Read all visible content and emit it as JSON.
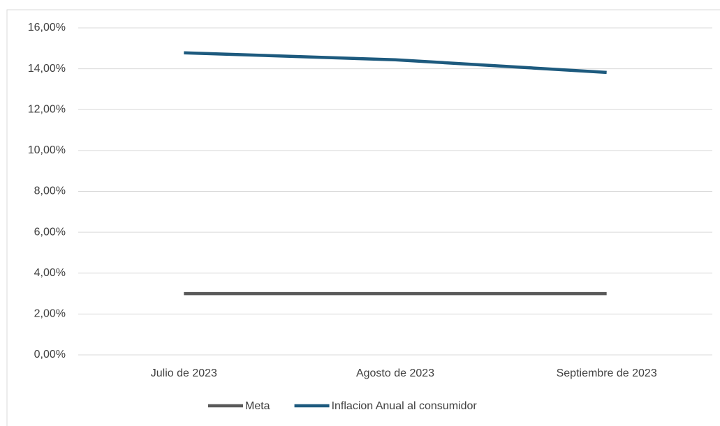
{
  "chart_data": {
    "type": "line",
    "categories": [
      "Julio de 2023",
      "Agosto de 2023",
      "Septiembre de 2023"
    ],
    "series": [
      {
        "name": "Meta",
        "color": "#595959",
        "values": [
          3,
          3,
          3
        ]
      },
      {
        "name": "Inflacion Anual al consumidor",
        "color": "#1d5a7e",
        "values": [
          14.78,
          14.44,
          13.82
        ]
      }
    ],
    "ylim": [
      0,
      16
    ],
    "yticks": [
      {
        "value": 0,
        "label": "0,00%"
      },
      {
        "value": 2,
        "label": "2,00%"
      },
      {
        "value": 4,
        "label": "4,00%"
      },
      {
        "value": 6,
        "label": "6,00%"
      },
      {
        "value": 8,
        "label": "8,00%"
      },
      {
        "value": 10,
        "label": "10,00%"
      },
      {
        "value": 12,
        "label": "12,00%"
      },
      {
        "value": 14,
        "label": "14,00%"
      },
      {
        "value": 16,
        "label": "16,00%"
      }
    ],
    "grid": true,
    "legend": "bottom"
  }
}
